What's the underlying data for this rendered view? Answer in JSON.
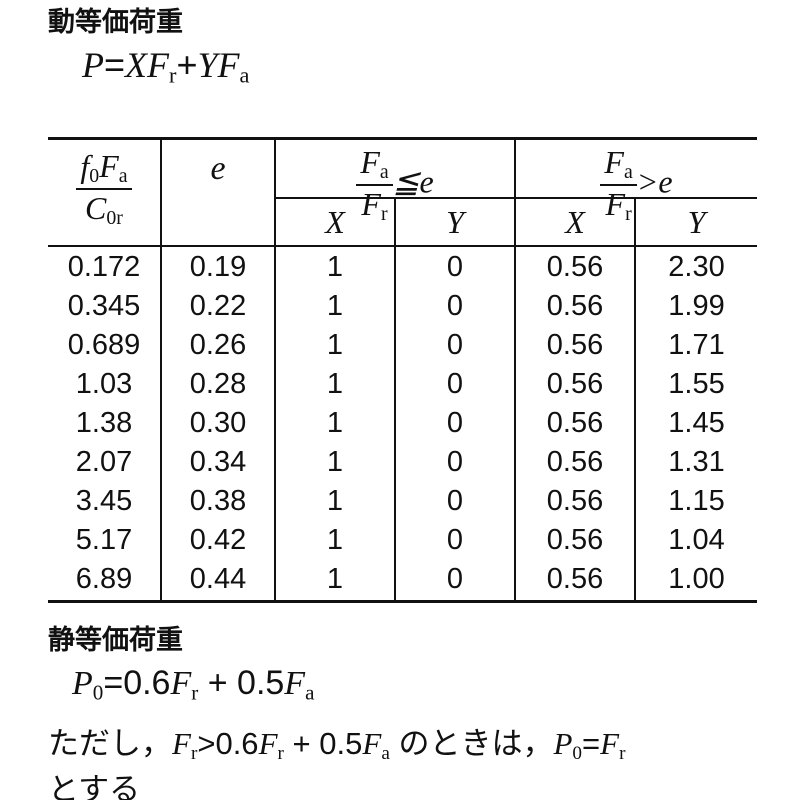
{
  "dynamic": {
    "heading": "動等価荷重",
    "formula": {
      "P": "P",
      "eq": "=",
      "XF": "XF",
      "r": "r",
      "plus": "+",
      "YF": "YF",
      "a": "a"
    }
  },
  "table": {
    "headers": {
      "col1": {
        "num_f": "f",
        "num_0": "0",
        "num_F": "F",
        "num_a": "a",
        "den_C": "C",
        "den_0r": "0r"
      },
      "col2": "e",
      "group1": {
        "num": "F",
        "num_sub": "a",
        "den": "F",
        "den_sub": "r",
        "rel": "≦e"
      },
      "group2": {
        "num": "F",
        "num_sub": "a",
        "den": "F",
        "den_sub": "r",
        "rel": ">e"
      },
      "sub": [
        "X",
        "Y",
        "X",
        "Y"
      ]
    },
    "rows": [
      [
        "0.172",
        "0.19",
        "1",
        "0",
        "0.56",
        "2.30"
      ],
      [
        "0.345",
        "0.22",
        "1",
        "0",
        "0.56",
        "1.99"
      ],
      [
        "0.689",
        "0.26",
        "1",
        "0",
        "0.56",
        "1.71"
      ],
      [
        "1.03",
        "0.28",
        "1",
        "0",
        "0.56",
        "1.55"
      ],
      [
        "1.38",
        "0.30",
        "1",
        "0",
        "0.56",
        "1.45"
      ],
      [
        "2.07",
        "0.34",
        "1",
        "0",
        "0.56",
        "1.31"
      ],
      [
        "3.45",
        "0.38",
        "1",
        "0",
        "0.56",
        "1.15"
      ],
      [
        "5.17",
        "0.42",
        "1",
        "0",
        "0.56",
        "1.04"
      ],
      [
        "6.89",
        "0.44",
        "1",
        "0",
        "0.56",
        "1.00"
      ]
    ]
  },
  "static": {
    "heading": "静等価荷重",
    "formula": {
      "P": "P",
      "P_sub": "0",
      "eq": "=",
      "c1": "0.6",
      "F1": "F",
      "F1_sub": "r",
      "plus": "+",
      "c2": "0.5",
      "F2": "F",
      "F2_sub": "a"
    },
    "note": {
      "prefix": "ただし，",
      "Fr": "F",
      "Fr_sub": "r",
      "gt": ">",
      "c1": "0.6",
      "F1": "F",
      "F1_sub": "r",
      "plus": "+",
      "c2": "0.5",
      "F2": "F",
      "F2_sub": "a",
      "mid": "のときは，",
      "P": "P",
      "P_sub": "0",
      "eq": "=",
      "F3": "F",
      "F3_sub": "r",
      "suffix": "とする"
    }
  }
}
